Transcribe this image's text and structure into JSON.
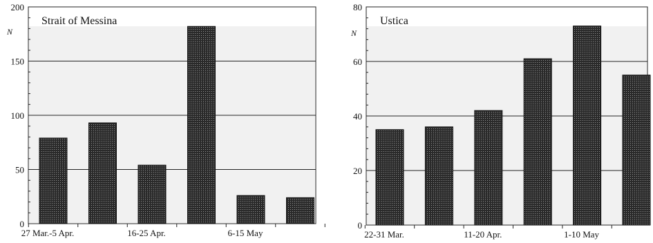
{
  "chart_data": [
    {
      "type": "bar",
      "title": "Strait of Messina",
      "ylabel": "N",
      "ylim": [
        0,
        200
      ],
      "yticks": [
        0,
        50,
        100,
        150,
        200
      ],
      "grid": true,
      "categories": [
        "27 Mar.-5 Apr.",
        "",
        "16-25 Apr.",
        "",
        "6-15 May",
        ""
      ],
      "values": [
        79,
        93,
        54,
        182,
        26,
        24
      ]
    },
    {
      "type": "bar",
      "title": "Ustica",
      "ylabel": "N",
      "ylim": [
        0,
        80
      ],
      "yticks": [
        0,
        20,
        40,
        60,
        80
      ],
      "grid": true,
      "categories": [
        "22-31 Mar.",
        "",
        "11-20 Apr.",
        "",
        "1-10 May",
        ""
      ],
      "values": [
        35,
        36,
        42,
        61,
        73,
        55
      ]
    }
  ]
}
